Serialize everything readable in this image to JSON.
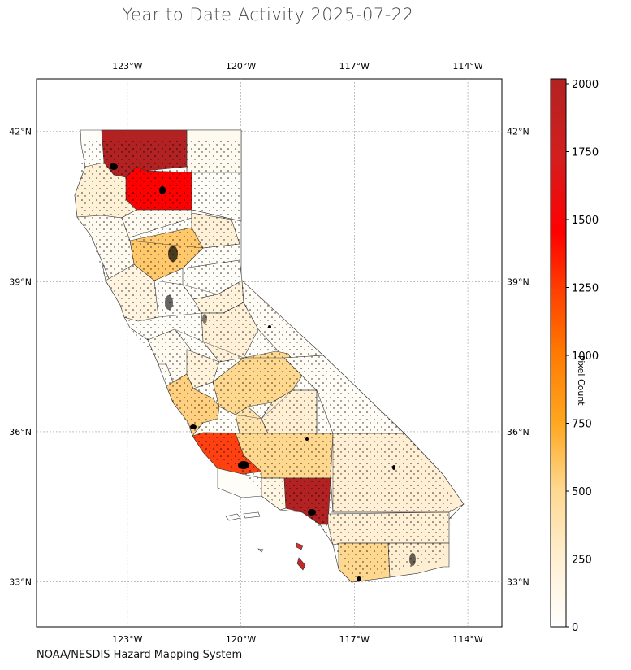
{
  "title": "Year to Date Activity 2025-07-22",
  "credit": "NOAA/NESDIS Hazard Mapping System",
  "map": {
    "lon_ticks": [
      {
        "value": -123,
        "label": "123°W"
      },
      {
        "value": -120,
        "label": "120°W"
      },
      {
        "value": -117,
        "label": "117°W"
      },
      {
        "value": -114,
        "label": "114°W"
      }
    ],
    "lat_ticks": [
      {
        "value": 42,
        "label": "42°N"
      },
      {
        "value": 39,
        "label": "39°N"
      },
      {
        "value": 36,
        "label": "36°N"
      },
      {
        "value": 33,
        "label": "33°N"
      }
    ],
    "lon_range": [
      -125.4,
      -113.1
    ],
    "lat_range": [
      32.1,
      43.05
    ],
    "gridlines": true
  },
  "colorbar": {
    "label": "Pixel Count",
    "range": [
      0,
      2000
    ],
    "ticks": [
      {
        "value": 0,
        "label": "0"
      },
      {
        "value": 250,
        "label": "250"
      },
      {
        "value": 500,
        "label": "500"
      },
      {
        "value": 750,
        "label": "750"
      },
      {
        "value": 1000,
        "label": "1000"
      },
      {
        "value": 1250,
        "label": "1250"
      },
      {
        "value": 1500,
        "label": "1500"
      },
      {
        "value": 1750,
        "label": "1750"
      },
      {
        "value": 2000,
        "label": "2000"
      }
    ],
    "colors": [
      "#ffffff",
      "#fff0d0",
      "#ffd890",
      "#ffb040",
      "#ff8000",
      "#ff4000",
      "#ff0000",
      "#d81818",
      "#b22222"
    ]
  }
}
